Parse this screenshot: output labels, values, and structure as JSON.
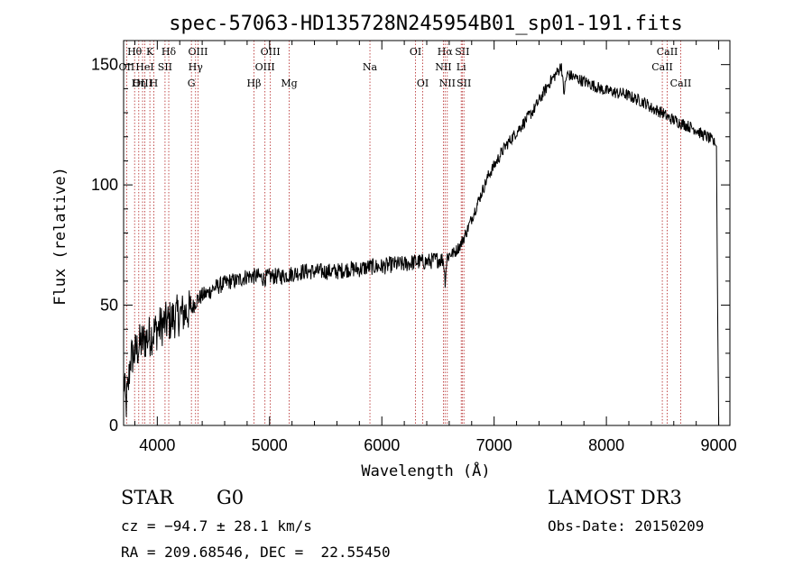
{
  "chart_data": {
    "type": "line",
    "title": "spec-57063-HD135728N245954B01_sp01-191.fits",
    "xlabel": "Wavelength (Å)",
    "ylabel": "Flux (relative)",
    "xlim": [
      3700,
      9100
    ],
    "ylim": [
      0,
      160
    ],
    "xticks": [
      4000,
      5000,
      6000,
      7000,
      8000,
      9000
    ],
    "xtick_labels": [
      "4000",
      "5000",
      "6000",
      "7000",
      "8000",
      "9000"
    ],
    "yticks": [
      0,
      50,
      100,
      150
    ],
    "ytick_labels": [
      "0",
      "50",
      "100",
      "150"
    ],
    "grid": false,
    "series": [
      {
        "name": "flux",
        "color": "#000000",
        "x": [
          3700,
          3720,
          3740,
          3760,
          3800,
          3850,
          3900,
          3950,
          4000,
          4050,
          4100,
          4150,
          4200,
          4250,
          4300,
          4350,
          4400,
          4450,
          4500,
          4550,
          4600,
          4650,
          4700,
          4750,
          4800,
          4850,
          4900,
          4950,
          5000,
          5100,
          5200,
          5300,
          5400,
          5500,
          5600,
          5700,
          5800,
          5900,
          6000,
          6100,
          6200,
          6300,
          6400,
          6500,
          6550,
          6563,
          6580,
          6600,
          6650,
          6700,
          6750,
          6800,
          6850,
          6900,
          6950,
          7000,
          7050,
          7100,
          7150,
          7200,
          7250,
          7300,
          7350,
          7400,
          7450,
          7500,
          7550,
          7580,
          7600,
          7620,
          7650,
          7700,
          7750,
          7800,
          7850,
          7900,
          7950,
          8000,
          8050,
          8100,
          8150,
          8200,
          8250,
          8300,
          8350,
          8400,
          8450,
          8500,
          8550,
          8600,
          8650,
          8700,
          8750,
          8800,
          8850,
          8900,
          8950,
          8980,
          8990,
          9000
        ],
        "y": [
          20,
          8,
          15,
          28,
          30,
          34,
          36,
          38,
          40,
          42,
          43,
          45,
          46,
          47,
          48,
          52,
          54,
          55,
          57,
          58,
          59,
          60,
          60,
          61,
          62,
          62,
          62,
          61,
          62,
          62,
          63,
          64,
          64,
          64,
          64,
          65,
          65,
          66,
          66,
          67,
          67,
          68,
          68,
          69,
          69,
          60,
          70,
          71,
          72,
          75,
          80,
          86,
          92,
          98,
          104,
          108,
          112,
          116,
          119,
          122,
          125,
          128,
          131,
          135,
          139,
          143,
          146,
          148,
          150,
          138,
          146,
          145,
          144,
          143,
          142,
          141,
          140,
          139,
          139,
          138,
          138,
          137,
          136,
          135,
          134,
          132,
          131,
          130,
          128,
          127,
          126,
          125,
          124,
          123,
          121,
          120,
          118,
          116,
          50,
          0
        ]
      }
    ],
    "lines": [
      {
        "label": "Hθ",
        "x": 3798,
        "row": 0
      },
      {
        "label": "OII",
        "x": 3727,
        "row": 1
      },
      {
        "label": "OIII",
        "x": 3869,
        "row": 2
      },
      {
        "label": "Hη",
        "x": 3835,
        "row": 2
      },
      {
        "label": "HeI",
        "x": 3889,
        "row": 1
      },
      {
        "label": "K",
        "x": 3934,
        "row": 0
      },
      {
        "label": "H",
        "x": 3969,
        "row": 2
      },
      {
        "label": "SII",
        "x": 4069,
        "row": 1
      },
      {
        "label": "Hδ",
        "x": 4102,
        "row": 0
      },
      {
        "label": "G",
        "x": 4304,
        "row": 2
      },
      {
        "label": "OIII",
        "x": 4363,
        "row": 0
      },
      {
        "label": "Hγ",
        "x": 4341,
        "row": 1
      },
      {
        "label": "Hβ",
        "x": 4861,
        "row": 2
      },
      {
        "label": "OIII",
        "x": 5007,
        "row": 0
      },
      {
        "label": "OIII",
        "x": 4959,
        "row": 1
      },
      {
        "label": "Mg",
        "x": 5175,
        "row": 2
      },
      {
        "label": "Na",
        "x": 5894,
        "row": 1
      },
      {
        "label": "OI",
        "x": 6300,
        "row": 0
      },
      {
        "label": "OI",
        "x": 6364,
        "row": 2
      },
      {
        "label": "Hα",
        "x": 6563,
        "row": 0
      },
      {
        "label": "NII",
        "x": 6548,
        "row": 1
      },
      {
        "label": "NII",
        "x": 6583,
        "row": 2
      },
      {
        "label": "SII",
        "x": 6716,
        "row": 0
      },
      {
        "label": "Li",
        "x": 6707,
        "row": 1
      },
      {
        "label": "SII",
        "x": 6731,
        "row": 2
      },
      {
        "label": "CaII",
        "x": 8542,
        "row": 0
      },
      {
        "label": "CaII",
        "x": 8498,
        "row": 1
      },
      {
        "label": "CaII",
        "x": 8662,
        "row": 2
      }
    ]
  },
  "info": {
    "object_class": "STAR",
    "subclass": "G0",
    "survey": "LAMOST DR3",
    "cz": "cz = −94.7 ± 28.1 km/s",
    "obs_date": "Obs-Date: 20150209",
    "coords": "RA = 209.68546, DEC =  22.55450"
  }
}
